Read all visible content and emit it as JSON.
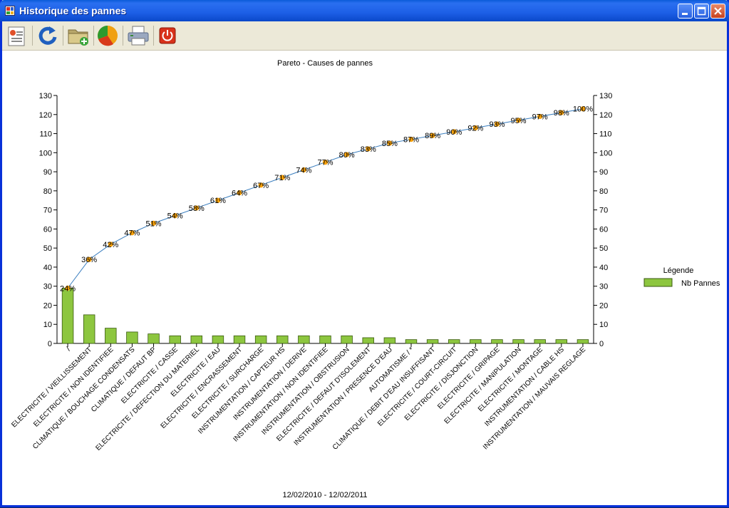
{
  "window": {
    "title": "Historique des pannes"
  },
  "toolbar": {
    "buttons": [
      {
        "name": "report-button",
        "icon": "report-icon"
      },
      {
        "name": "refresh-button",
        "icon": "refresh-icon"
      },
      {
        "name": "open-folder-button",
        "icon": "folder-add-icon"
      },
      {
        "name": "pie-chart-button",
        "icon": "pie-chart-icon"
      },
      {
        "name": "print-button",
        "icon": "printer-icon"
      },
      {
        "name": "power-button",
        "icon": "power-icon"
      }
    ]
  },
  "colors": {
    "bar": "#8dc63f",
    "bar_border": "#3a5a10",
    "line": "#3a7ebf",
    "marker": "#f7a10a"
  },
  "chart_data": {
    "type": "bar",
    "title": "Pareto - Causes de pannes",
    "footer": "12/02/2010 - 12/02/2011",
    "legend_title": "Légende",
    "legend_placement": "right",
    "ylim": [
      0,
      130
    ],
    "yticks": [
      0,
      10,
      20,
      30,
      40,
      50,
      60,
      70,
      80,
      90,
      100,
      110,
      120,
      130
    ],
    "categories": [
      "/",
      "ELECTRICITE / VIEILLISSEMENT",
      "ELECTRICITE / NON IDENTIFIEE",
      "CLIMATIQUE / BOUCHAGE CONDENSATS",
      "CLIMATIQUE / DEFAUT BP",
      "ELECTRICITE / CASSE",
      "ELECTRICITE / DEFECTION DU MATERIEL",
      "ELECTRICITE / EAU",
      "ELECTRICITE / ENCRASSEMENT",
      "ELECTRICITE / SURCHARGE",
      "INSTRUMENTATION / CAPTEUR HS",
      "INSTRUMENTATION / DERIVE",
      "INSTRUMENTATION / NON IDENTIFIEE",
      "INSTRUMENTATION / OBSTRUSION",
      "ELECTRICITE / DEFAUT D'ISOLEMENT",
      "INSTRUMENTATION / PRESENCE D'EAU",
      "AUTOMATISME / *",
      "CLIMATIQUE / DEBIT D'EAU INSUFFISANT",
      "ELECTRICITE / COURT-CIRCUIT",
      "ELECTRICITE / DISJONCTION",
      "ELECTRICITE / GRIPAGE",
      "ELECTRICITE / MANIPULATION",
      "ELECTRICITE / MONTAGE",
      "INSTRUMENTATION / CABLE HS",
      "INSTRUMENTATION / MAUVAIS REGLAGE"
    ],
    "series": [
      {
        "name": "Nb Pannes",
        "kind": "bar",
        "values": [
          29,
          15,
          8,
          6,
          5,
          4,
          4,
          4,
          4,
          4,
          4,
          4,
          4,
          4,
          3,
          3,
          2,
          2,
          2,
          2,
          2,
          2,
          2,
          2,
          2
        ]
      },
      {
        "kind": "line",
        "values": [
          29,
          44,
          52,
          58,
          63,
          67,
          71,
          75,
          79,
          83,
          87,
          91,
          95,
          99,
          102,
          105,
          107,
          109,
          111,
          113,
          115,
          117,
          119,
          121,
          123
        ],
        "labels": [
          "24%",
          "36%",
          "42%",
          "47%",
          "51%",
          "54%",
          "58%",
          "61%",
          "64%",
          "67%",
          "71%",
          "74%",
          "77%",
          "80%",
          "83%",
          "85%",
          "87%",
          "89%",
          "90%",
          "92%",
          "93%",
          "95%",
          "97%",
          "98%",
          "100%"
        ]
      }
    ]
  }
}
